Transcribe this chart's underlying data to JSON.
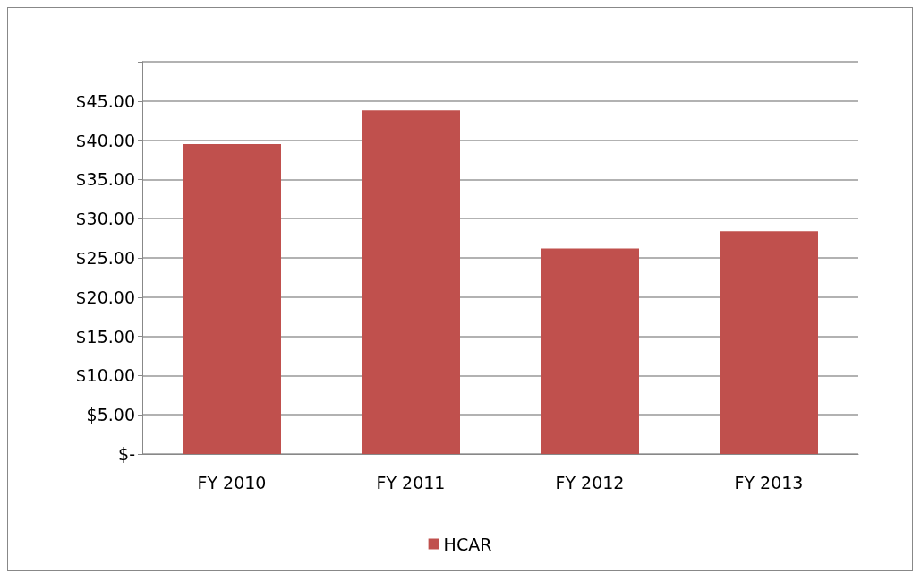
{
  "chart_data": {
    "type": "bar",
    "categories": [
      "FY 2010",
      "FY 2011",
      "FY 2012",
      "FY 2013"
    ],
    "series": [
      {
        "name": "HCAR",
        "color": "#c0504d",
        "values": [
          39.5,
          43.8,
          26.2,
          28.4
        ]
      }
    ],
    "ylim": [
      0,
      50
    ],
    "yticks": [
      {
        "value": 0,
        "label": "$-"
      },
      {
        "value": 5,
        "label": "$5.00"
      },
      {
        "value": 10,
        "label": "$10.00"
      },
      {
        "value": 15,
        "label": "$15.00"
      },
      {
        "value": 20,
        "label": "$20.00"
      },
      {
        "value": 25,
        "label": "$25.00"
      },
      {
        "value": 30,
        "label": "$30.00"
      },
      {
        "value": 35,
        "label": "$35.00"
      },
      {
        "value": 40,
        "label": "$40.00"
      },
      {
        "value": 45,
        "label": "$45.00"
      },
      {
        "value": 50,
        "label": null
      }
    ],
    "grid": "y",
    "legend": "bottom"
  }
}
